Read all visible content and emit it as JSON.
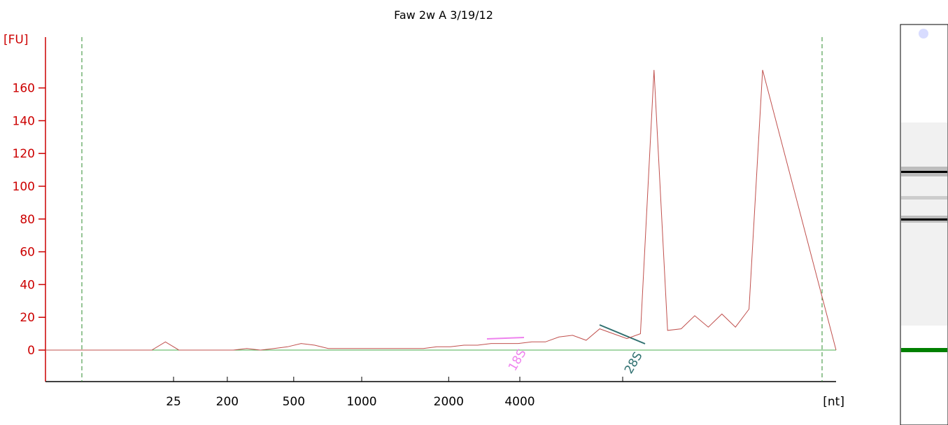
{
  "chart_data": {
    "type": "line",
    "title": "Faw 2w A 3/19/12",
    "ylabel": "[FU]",
    "xlabel": "[nt]",
    "ylim": [
      -20,
      180
    ],
    "yticks": [
      0,
      20,
      40,
      60,
      80,
      100,
      120,
      140,
      160
    ],
    "xticks": [
      {
        "label": "25",
        "value": 25
      },
      {
        "label": "200",
        "value": 200
      },
      {
        "label": "500",
        "value": 500
      },
      {
        "label": "1000",
        "value": 1000
      },
      {
        "label": "2000",
        "value": 2000
      },
      {
        "label": "4000",
        "value": 4000
      },
      {
        "label": "[nt]",
        "value": null
      }
    ],
    "grid": false,
    "series": [
      {
        "color": "#c0504d",
        "x": [
          0,
          2,
          4,
          6,
          8,
          10,
          12,
          14,
          16,
          18,
          20,
          22,
          24,
          26,
          28,
          30,
          32,
          34,
          36,
          38,
          40,
          42,
          44,
          46,
          48,
          50,
          52,
          54,
          56,
          58,
          60,
          62,
          64,
          66,
          68,
          70,
          72,
          74,
          76,
          78,
          80,
          82,
          84,
          86,
          88,
          90,
          92,
          94,
          96,
          98,
          100
        ],
        "y": [
          0,
          0,
          0,
          0,
          0,
          0,
          5,
          0,
          0,
          0,
          0,
          0,
          1,
          0,
          1,
          2,
          4,
          3,
          1,
          1,
          1,
          1,
          1,
          1,
          1,
          1,
          2,
          2,
          3,
          3,
          4,
          4,
          4,
          5,
          5,
          8,
          9,
          6,
          13,
          10,
          7,
          10,
          171,
          12,
          13,
          21,
          14,
          22,
          14,
          25,
          171
        ]
      }
    ],
    "markers": [
      {
        "label": "18S",
        "color": "#ee82ee"
      },
      {
        "label": "28S",
        "color": "#2f7070"
      }
    ]
  },
  "gel": {
    "band_colors": [
      "#000000",
      "#000000",
      "#008000"
    ],
    "marker_icon": "dot-icon"
  }
}
